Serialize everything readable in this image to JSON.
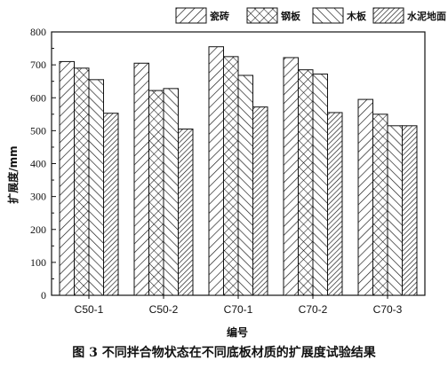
{
  "chart_data": {
    "type": "bar",
    "categories": [
      "C50-1",
      "C50-2",
      "C70-1",
      "C70-2",
      "C70-3"
    ],
    "series": [
      {
        "name": "瓷砖",
        "pattern": "diag-forward",
        "values": [
          710,
          705,
          755,
          722,
          595
        ]
      },
      {
        "name": "钢板",
        "pattern": "crosshatch",
        "values": [
          690,
          622,
          725,
          685,
          550
        ]
      },
      {
        "name": "木板",
        "pattern": "diag-back",
        "values": [
          655,
          628,
          668,
          672,
          515
        ]
      },
      {
        "name": "水泥地面",
        "pattern": "diag-dense",
        "values": [
          553,
          505,
          572,
          555,
          515
        ]
      }
    ],
    "xlabel": "编号",
    "ylabel": "扩展度/mm",
    "ylim": [
      0,
      800
    ],
    "yticks": [
      0,
      100,
      200,
      300,
      400,
      500,
      600,
      700,
      800
    ],
    "legend_position": "top",
    "grid": false,
    "colors": {
      "bar_fill": "#ffffff",
      "bar_stroke": "#111111",
      "hatch": "#111111"
    }
  },
  "caption": "图 3   不同拌合物状态在不同底板材质的扩展度试验结果"
}
